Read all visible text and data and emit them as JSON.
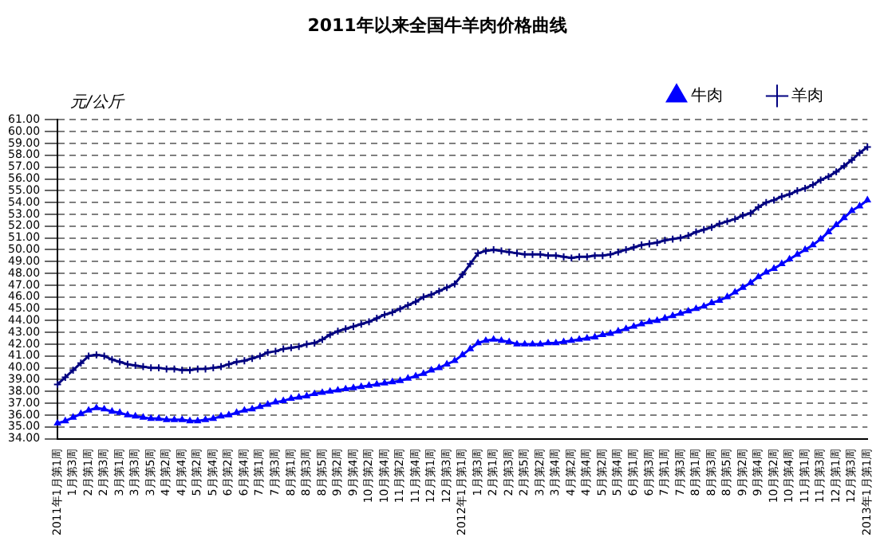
{
  "chart_data": {
    "type": "line",
    "title": "2011年以来全国牛羊肉价格曲线",
    "ylabel": "元/公斤",
    "categories": [
      "2011年1月第1周",
      null,
      "1月第3周",
      null,
      "2月第1周",
      null,
      "2月第3周",
      null,
      "3月第1周",
      null,
      "3月第3周",
      null,
      "3月第5周",
      null,
      "4月第2周",
      null,
      "4月第4周",
      null,
      "5月第2周",
      null,
      "5月第4周",
      null,
      "6月第2周",
      null,
      "6月第4周",
      null,
      "7月第1周",
      null,
      "7月第3周",
      null,
      "8月第1周",
      null,
      "8月第3周",
      null,
      "8月第5周",
      null,
      "9月第2周",
      null,
      "9月第4周",
      null,
      "10月第2周",
      null,
      "10月第4周",
      null,
      "11月第2周",
      null,
      "11月第4周",
      null,
      "12月第1周",
      null,
      "12月第3周",
      null,
      "2012年1月第1周",
      null,
      "1月第3周",
      null,
      "2月第1周",
      null,
      "2月第3周",
      null,
      "2月第5周",
      null,
      "3月第2周",
      null,
      "3月第4周",
      null,
      "4月第2周",
      null,
      "4月第4周",
      null,
      "5月第2周",
      null,
      "5月第4周",
      null,
      "6月第1周",
      null,
      "6月第3周",
      null,
      "7月第1周",
      null,
      "7月第3周",
      null,
      "8月第1周",
      null,
      "8月第3周",
      null,
      "8月第5周",
      null,
      "9月第2周",
      null,
      "9月第4周",
      null,
      "10月第2周",
      null,
      "10月第4周",
      null,
      "11月第1周",
      null,
      "11月第3周",
      null,
      "12月第1周",
      null,
      "12月第3周",
      null,
      "2013年1月第1周"
    ],
    "series": [
      {
        "name": "牛肉",
        "color": "#0000ff",
        "marker": "triangle",
        "values": [
          35.3,
          35.5,
          35.8,
          36.1,
          36.4,
          36.6,
          36.5,
          36.3,
          36.2,
          36.0,
          35.9,
          35.8,
          35.7,
          35.7,
          35.6,
          35.6,
          35.6,
          35.5,
          35.5,
          35.6,
          35.7,
          35.9,
          36.0,
          36.2,
          36.4,
          36.5,
          36.7,
          36.9,
          37.1,
          37.2,
          37.4,
          37.5,
          37.6,
          37.8,
          37.9,
          38.0,
          38.1,
          38.2,
          38.3,
          38.4,
          38.5,
          38.6,
          38.7,
          38.8,
          38.9,
          39.1,
          39.3,
          39.5,
          39.8,
          40.0,
          40.3,
          40.6,
          41.1,
          41.6,
          42.1,
          42.3,
          42.4,
          42.3,
          42.2,
          42.0,
          42.0,
          42.0,
          42.0,
          42.1,
          42.1,
          42.2,
          42.3,
          42.4,
          42.5,
          42.6,
          42.8,
          42.9,
          43.1,
          43.3,
          43.5,
          43.7,
          43.9,
          44.0,
          44.2,
          44.4,
          44.6,
          44.8,
          45.0,
          45.2,
          45.5,
          45.7,
          46.0,
          46.4,
          46.8,
          47.2,
          47.7,
          48.1,
          48.4,
          48.8,
          49.2,
          49.6,
          50.0,
          50.4,
          50.9,
          51.5,
          52.1,
          52.7,
          53.3,
          53.7,
          54.2
        ]
      },
      {
        "name": "羊肉",
        "color": "#000080",
        "marker": "cross",
        "values": [
          38.6,
          39.2,
          39.8,
          40.4,
          41.0,
          41.1,
          41.0,
          40.7,
          40.5,
          40.3,
          40.2,
          40.1,
          40.0,
          40.0,
          39.9,
          39.9,
          39.8,
          39.8,
          39.9,
          39.9,
          40.0,
          40.1,
          40.3,
          40.5,
          40.6,
          40.8,
          41.0,
          41.3,
          41.4,
          41.6,
          41.7,
          41.8,
          42.0,
          42.1,
          42.4,
          42.8,
          43.1,
          43.3,
          43.5,
          43.7,
          43.9,
          44.2,
          44.5,
          44.7,
          45.0,
          45.3,
          45.6,
          46.0,
          46.2,
          46.5,
          46.8,
          47.1,
          47.9,
          48.8,
          49.7,
          49.9,
          50.0,
          49.9,
          49.8,
          49.7,
          49.6,
          49.6,
          49.6,
          49.5,
          49.5,
          49.4,
          49.3,
          49.4,
          49.4,
          49.5,
          49.5,
          49.6,
          49.8,
          50.0,
          50.2,
          50.4,
          50.5,
          50.6,
          50.8,
          50.9,
          51.0,
          51.2,
          51.5,
          51.7,
          51.9,
          52.2,
          52.4,
          52.6,
          52.9,
          53.1,
          53.6,
          54.0,
          54.2,
          54.5,
          54.7,
          55.0,
          55.2,
          55.5,
          55.9,
          56.2,
          56.6,
          57.1,
          57.6,
          58.2,
          58.7
        ]
      }
    ],
    "ylim": [
      34,
      61
    ],
    "yticks": [
      {
        "value": 34,
        "label": "34.00"
      },
      {
        "value": 35,
        "label": "35.00"
      },
      {
        "value": 36,
        "label": "36.00"
      },
      {
        "value": 37,
        "label": "37.00"
      },
      {
        "value": 38,
        "label": "38.00"
      },
      {
        "value": 39,
        "label": "39.00"
      },
      {
        "value": 40,
        "label": "40.00"
      },
      {
        "value": 41,
        "label": "41.00"
      },
      {
        "value": 42,
        "label": "42.00"
      },
      {
        "value": 43,
        "label": "43.00"
      },
      {
        "value": 44,
        "label": "44.00"
      },
      {
        "value": 45,
        "label": "45.00"
      },
      {
        "value": 46,
        "label": "46.00"
      },
      {
        "value": 47,
        "label": "47.00"
      },
      {
        "value": 48,
        "label": "48.00"
      },
      {
        "value": 49,
        "label": "49.00"
      },
      {
        "value": 50,
        "label": "50.00"
      },
      {
        "value": 51,
        "label": "51.00"
      },
      {
        "value": 52,
        "label": "52.00"
      },
      {
        "value": 53,
        "label": "53.00"
      },
      {
        "value": 54,
        "label": "54.00"
      },
      {
        "value": 55,
        "label": "55.00"
      },
      {
        "value": 56,
        "label": "56.00"
      },
      {
        "value": 57,
        "label": "57.00"
      },
      {
        "value": 58,
        "label": "58.00"
      },
      {
        "value": 59,
        "label": "59.00"
      },
      {
        "value": 60,
        "label": "60.00"
      },
      {
        "value": 61,
        "label": "61.00"
      }
    ],
    "grid": "y",
    "legend": "top right",
    "line_style": "solid"
  }
}
